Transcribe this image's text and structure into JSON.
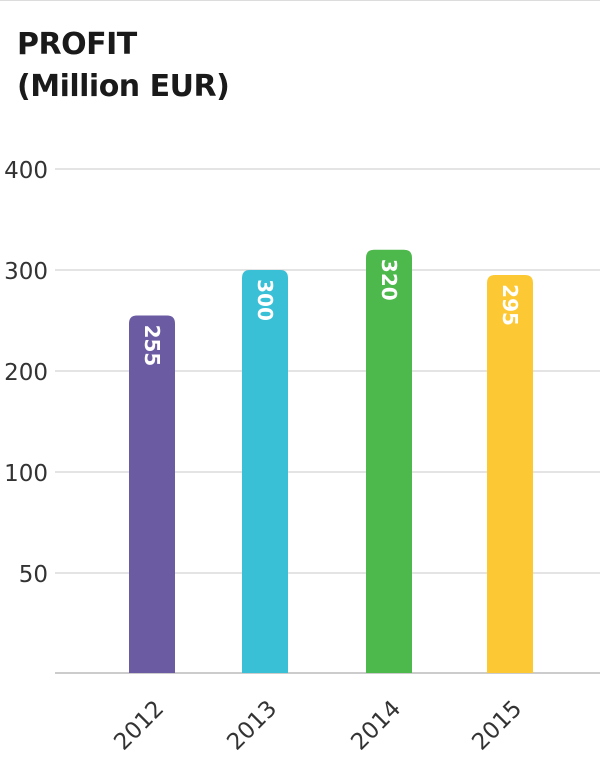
{
  "chart_data": {
    "type": "bar",
    "title": "PROFIT",
    "subtitle": "(Million EUR)",
    "categories": [
      "2012",
      "2013",
      "2014",
      "2015"
    ],
    "values": [
      255,
      300,
      320,
      295
    ],
    "value_labels": [
      "255",
      "300",
      "320",
      "295"
    ],
    "colors": [
      "#6b5ba3",
      "#3ac0d6",
      "#4db84b",
      "#fcc934"
    ],
    "y_ticks": [
      {
        "value": 50,
        "label": "50"
      },
      {
        "value": 100,
        "label": "100"
      },
      {
        "value": 200,
        "label": "200"
      },
      {
        "value": 300,
        "label": "300"
      },
      {
        "value": 400,
        "label": "400"
      }
    ],
    "xlabel": "",
    "ylabel": "",
    "grid": true,
    "legend": "none"
  }
}
